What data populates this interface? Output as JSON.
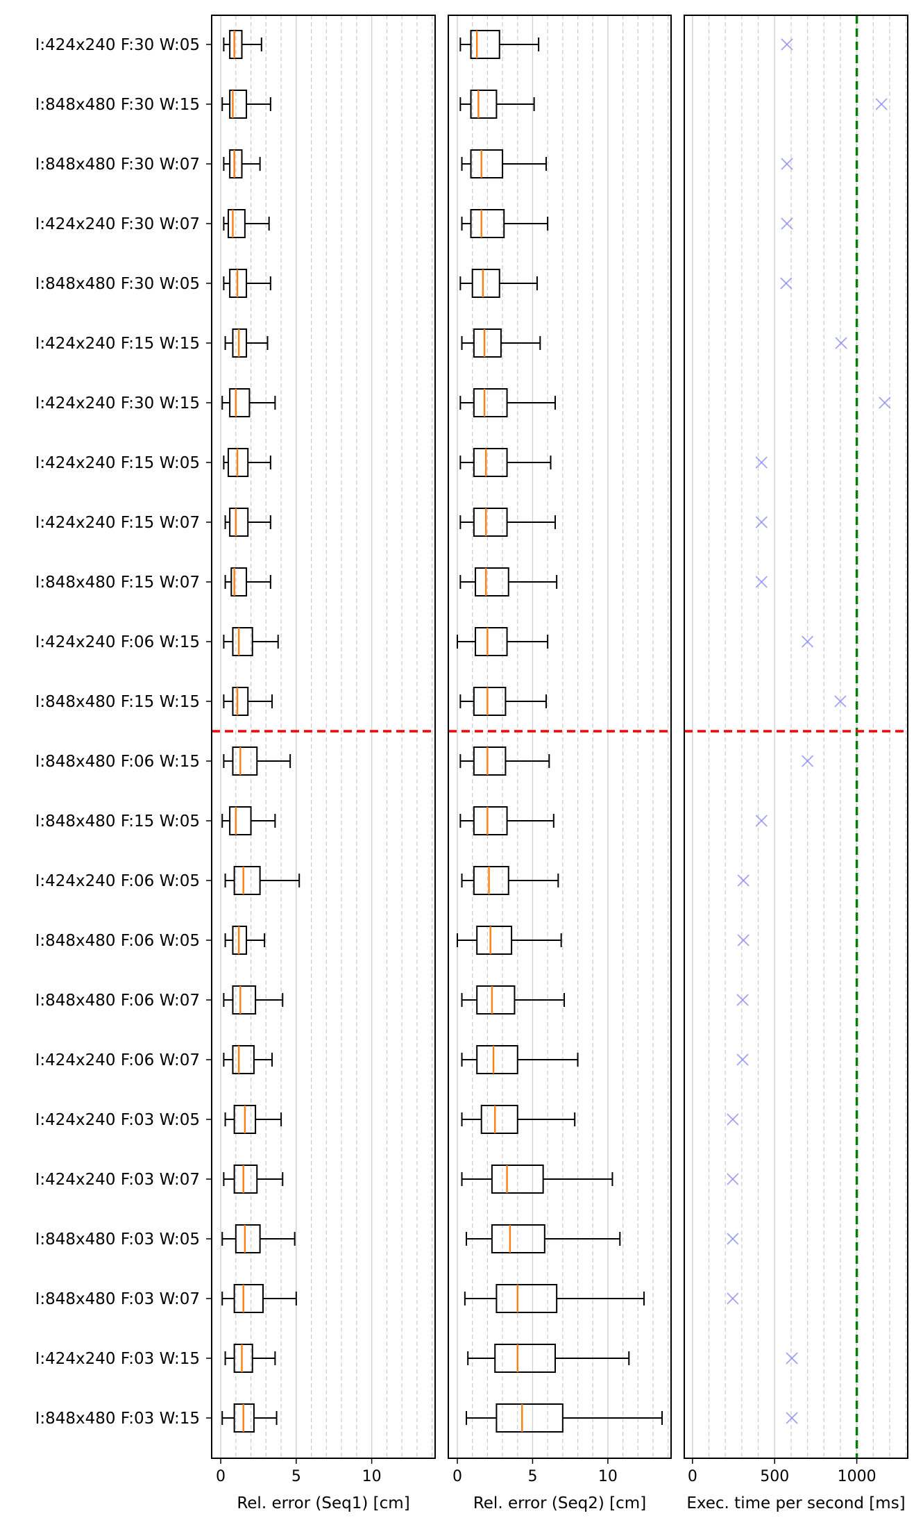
{
  "chart_data": {
    "type": "box",
    "categories": [
      "I:424x240 F:30 W:05",
      "I:848x480 F:30 W:15",
      "I:848x480 F:30 W:07",
      "I:424x240 F:30 W:07",
      "I:848x480 F:30 W:05",
      "I:424x240 F:15 W:15",
      "I:424x240 F:30 W:15",
      "I:424x240 F:15 W:05",
      "I:424x240 F:15 W:07",
      "I:848x480 F:15 W:07",
      "I:424x240 F:06 W:15",
      "I:848x480 F:15 W:15",
      "I:848x480 F:06 W:15",
      "I:848x480 F:15 W:05",
      "I:424x240 F:06 W:05",
      "I:848x480 F:06 W:05",
      "I:848x480 F:06 W:07",
      "I:424x240 F:06 W:07",
      "I:424x240 F:03 W:05",
      "I:424x240 F:03 W:07",
      "I:848x480 F:03 W:05",
      "I:848x480 F:03 W:07",
      "I:424x240 F:03 W:15",
      "I:848x480 F:03 W:15"
    ],
    "divider_after_index": 11,
    "panels": [
      {
        "xlabel": "Rel. error (Seq1) [cm]",
        "xlim": [
          -0.6,
          14.2
        ],
        "xticks": [
          0,
          5,
          10
        ],
        "minor_grid_step": 1,
        "kind": "box",
        "boxes": [
          [
            0.2,
            0.6,
            0.9,
            1.4,
            2.7
          ],
          [
            0.1,
            0.6,
            0.8,
            1.7,
            3.3
          ],
          [
            0.2,
            0.6,
            0.9,
            1.4,
            2.6
          ],
          [
            0.2,
            0.5,
            0.8,
            1.6,
            3.2
          ],
          [
            0.2,
            0.6,
            1.1,
            1.7,
            3.3
          ],
          [
            0.3,
            0.8,
            1.2,
            1.7,
            3.1
          ],
          [
            0.1,
            0.6,
            1.0,
            1.9,
            3.6
          ],
          [
            0.2,
            0.5,
            1.1,
            1.8,
            3.3
          ],
          [
            0.3,
            0.6,
            1.0,
            1.8,
            3.3
          ],
          [
            0.3,
            0.7,
            0.9,
            1.7,
            3.3
          ],
          [
            0.2,
            0.8,
            1.2,
            2.1,
            3.8
          ],
          [
            0.2,
            0.8,
            1.1,
            1.8,
            3.4
          ],
          [
            0.2,
            0.8,
            1.3,
            2.4,
            4.6
          ],
          [
            0.1,
            0.6,
            1.0,
            2.0,
            3.6
          ],
          [
            0.3,
            0.9,
            1.5,
            2.6,
            5.2
          ],
          [
            0.3,
            0.8,
            1.2,
            1.7,
            2.9
          ],
          [
            0.2,
            0.8,
            1.3,
            2.3,
            4.1
          ],
          [
            0.2,
            0.8,
            1.2,
            2.2,
            3.4
          ],
          [
            0.3,
            0.9,
            1.6,
            2.3,
            4.0
          ],
          [
            0.2,
            0.9,
            1.5,
            2.4,
            4.1
          ],
          [
            0.1,
            1.0,
            1.6,
            2.6,
            4.9
          ],
          [
            0.1,
            0.9,
            1.5,
            2.8,
            5.0
          ],
          [
            0.3,
            0.9,
            1.4,
            2.1,
            3.6
          ],
          [
            0.1,
            0.9,
            1.5,
            2.2,
            3.7
          ]
        ]
      },
      {
        "xlabel": "Rel. error (Seq2) [cm]",
        "xlim": [
          -0.6,
          14.2
        ],
        "xticks": [
          0,
          5,
          10
        ],
        "minor_grid_step": 1,
        "kind": "box",
        "boxes": [
          [
            0.2,
            0.9,
            1.3,
            2.8,
            5.4
          ],
          [
            0.2,
            0.9,
            1.4,
            2.6,
            5.1
          ],
          [
            0.3,
            0.9,
            1.6,
            3.0,
            5.9
          ],
          [
            0.3,
            0.9,
            1.6,
            3.1,
            6.0
          ],
          [
            0.2,
            1.0,
            1.7,
            2.8,
            5.3
          ],
          [
            0.3,
            1.1,
            1.8,
            2.9,
            5.5
          ],
          [
            0.2,
            1.1,
            1.8,
            3.3,
            6.5
          ],
          [
            0.2,
            1.1,
            1.9,
            3.3,
            6.2
          ],
          [
            0.2,
            1.1,
            1.9,
            3.3,
            6.5
          ],
          [
            0.2,
            1.2,
            1.9,
            3.4,
            6.6
          ],
          [
            0.0,
            1.2,
            2.0,
            3.3,
            6.0
          ],
          [
            0.2,
            1.1,
            2.0,
            3.2,
            5.9
          ],
          [
            0.2,
            1.1,
            2.0,
            3.2,
            6.1
          ],
          [
            0.2,
            1.1,
            2.0,
            3.3,
            6.4
          ],
          [
            0.3,
            1.1,
            2.1,
            3.4,
            6.7
          ],
          [
            0.0,
            1.3,
            2.2,
            3.6,
            6.9
          ],
          [
            0.3,
            1.3,
            2.3,
            3.8,
            7.1
          ],
          [
            0.3,
            1.3,
            2.4,
            4.0,
            8.0
          ],
          [
            0.3,
            1.6,
            2.5,
            4.0,
            7.8
          ],
          [
            0.3,
            2.3,
            3.3,
            5.7,
            10.3
          ],
          [
            0.6,
            2.3,
            3.5,
            5.8,
            10.8
          ],
          [
            0.5,
            2.6,
            4.0,
            6.6,
            12.4
          ],
          [
            0.7,
            2.5,
            4.0,
            6.5,
            11.4
          ],
          [
            0.6,
            2.6,
            4.3,
            7.0,
            13.6
          ]
        ]
      },
      {
        "xlabel": "Exec. time per second [ms]",
        "xlim": [
          -50,
          1310
        ],
        "xticks": [
          0,
          500,
          1000
        ],
        "minor_grid_step": 100,
        "kind": "marker",
        "marker": "x",
        "marker_color": "#8c8cf2",
        "reference_line": 1000,
        "reference_color": "#007f00",
        "values": [
          575,
          1150,
          575,
          575,
          570,
          905,
          1170,
          420,
          420,
          420,
          700,
          900,
          700,
          420,
          310,
          310,
          305,
          305,
          245,
          245,
          245,
          245,
          605,
          605
        ]
      }
    ],
    "divider_color": "#ff0000",
    "median_color": "#ff7f0e",
    "grid": "vertical dashed"
  }
}
